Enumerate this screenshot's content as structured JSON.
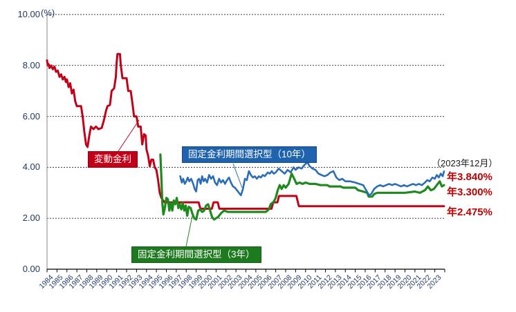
{
  "chart_data": {
    "type": "line",
    "title": "",
    "unit_label": "(%)",
    "xlabel": "",
    "ylabel": "",
    "ylim": [
      0,
      10
    ],
    "y_tick_labels": [
      "0.00",
      "2.00",
      "4.00",
      "6.00",
      "8.00",
      "10.00"
    ],
    "grid": "horizontal dashed gridlines at every 2.00",
    "legend_position": "inline callout boxes on plot",
    "x_years": [
      1984,
      1985,
      1986,
      1987,
      1988,
      1989,
      1990,
      1991,
      1992,
      1993,
      1994,
      1995,
      1996,
      1997,
      1998,
      1999,
      2000,
      2001,
      2002,
      2003,
      2004,
      2005,
      2006,
      2007,
      2008,
      2009,
      2010,
      2011,
      2012,
      2013,
      2014,
      2015,
      2016,
      2017,
      2018,
      2019,
      2020,
      2021,
      2022,
      2023
    ],
    "axis_text_color": "#1f3864",
    "series": [
      {
        "name": "変動金利",
        "color": "#c40018",
        "final_value": 2.475,
        "points": [
          [
            1984.0,
            8.2
          ],
          [
            1984.08,
            8.0
          ],
          [
            1984.17,
            8.05
          ],
          [
            1984.25,
            7.9
          ],
          [
            1984.42,
            8.0
          ],
          [
            1984.58,
            7.85
          ],
          [
            1984.75,
            7.95
          ],
          [
            1984.9,
            7.75
          ],
          [
            1985.08,
            7.8
          ],
          [
            1985.25,
            7.55
          ],
          [
            1985.42,
            7.65
          ],
          [
            1985.58,
            7.45
          ],
          [
            1985.75,
            7.55
          ],
          [
            1985.9,
            7.35
          ],
          [
            1986.0,
            7.45
          ],
          [
            1986.17,
            7.15
          ],
          [
            1986.33,
            7.3
          ],
          [
            1986.5,
            6.9
          ],
          [
            1986.67,
            7.05
          ],
          [
            1986.83,
            6.6
          ],
          [
            1987.0,
            6.4
          ],
          [
            1987.42,
            6.4
          ],
          [
            1987.58,
            6.0
          ],
          [
            1987.75,
            5.4
          ],
          [
            1987.92,
            4.9
          ],
          [
            1988.08,
            4.8
          ],
          [
            1988.25,
            5.25
          ],
          [
            1988.42,
            5.6
          ],
          [
            1988.67,
            5.5
          ],
          [
            1988.92,
            5.6
          ],
          [
            1989.17,
            5.5
          ],
          [
            1989.5,
            5.55
          ],
          [
            1989.75,
            5.9
          ],
          [
            1989.92,
            6.2
          ],
          [
            1990.08,
            6.4
          ],
          [
            1990.33,
            6.45
          ],
          [
            1990.5,
            7.0
          ],
          [
            1990.75,
            7.1
          ],
          [
            1990.92,
            7.55
          ],
          [
            1991.0,
            8.1
          ],
          [
            1991.08,
            8.45
          ],
          [
            1991.33,
            8.45
          ],
          [
            1991.42,
            8.0
          ],
          [
            1991.58,
            7.5
          ],
          [
            1992.0,
            7.5
          ],
          [
            1992.17,
            7.0
          ],
          [
            1992.42,
            7.0
          ],
          [
            1992.58,
            6.55
          ],
          [
            1992.75,
            6.0
          ],
          [
            1993.0,
            6.0
          ],
          [
            1993.17,
            5.6
          ],
          [
            1993.42,
            5.6
          ],
          [
            1993.58,
            4.9
          ],
          [
            1993.75,
            5.3
          ],
          [
            1993.92,
            5.25
          ],
          [
            1994.0,
            4.7
          ],
          [
            1994.17,
            4.45
          ],
          [
            1994.33,
            4.05
          ],
          [
            1994.5,
            4.3
          ],
          [
            1994.67,
            4.3
          ],
          [
            1994.83,
            4.0
          ],
          [
            1995.0,
            3.9
          ],
          [
            1995.17,
            3.5
          ],
          [
            1995.33,
            3.0
          ],
          [
            1995.5,
            2.8
          ],
          [
            1995.67,
            2.7
          ],
          [
            1995.83,
            2.625
          ],
          [
            1999.25,
            2.625
          ],
          [
            1999.42,
            2.375
          ],
          [
            2000.58,
            2.375
          ],
          [
            2000.75,
            2.625
          ],
          [
            2001.17,
            2.625
          ],
          [
            2001.33,
            2.375
          ],
          [
            2006.58,
            2.375
          ],
          [
            2006.75,
            2.625
          ],
          [
            2007.17,
            2.625
          ],
          [
            2007.33,
            2.875
          ],
          [
            2009.08,
            2.875
          ],
          [
            2009.33,
            2.475
          ],
          [
            2023.92,
            2.475
          ]
        ]
      },
      {
        "name": "固定金利期間選択型（3年）",
        "color": "#1e8a1e",
        "final_value": 3.3,
        "points": [
          [
            1995.4,
            4.5
          ],
          [
            1995.5,
            3.6
          ],
          [
            1995.6,
            2.6
          ],
          [
            1995.7,
            2.15
          ],
          [
            1995.85,
            2.4
          ],
          [
            1996.0,
            2.8
          ],
          [
            1996.15,
            2.75
          ],
          [
            1996.3,
            2.3
          ],
          [
            1996.45,
            2.6
          ],
          [
            1996.6,
            2.3
          ],
          [
            1996.75,
            2.7
          ],
          [
            1996.9,
            2.55
          ],
          [
            1997.05,
            2.8
          ],
          [
            1997.2,
            2.4
          ],
          [
            1997.35,
            2.55
          ],
          [
            1997.5,
            2.35
          ],
          [
            1997.65,
            2.6
          ],
          [
            1997.8,
            2.3
          ],
          [
            1997.95,
            2.5
          ],
          [
            1998.1,
            2.1
          ],
          [
            1998.25,
            2.45
          ],
          [
            1998.45,
            2.4
          ],
          [
            1998.6,
            2.2
          ],
          [
            1998.8,
            2.0
          ],
          [
            1999.0,
            1.95
          ],
          [
            1999.2,
            2.3
          ],
          [
            1999.4,
            2.35
          ],
          [
            1999.6,
            2.25
          ],
          [
            1999.8,
            2.3
          ],
          [
            2000.0,
            2.5
          ],
          [
            2000.2,
            2.55
          ],
          [
            2000.4,
            2.3
          ],
          [
            2000.6,
            2.05
          ],
          [
            2000.8,
            1.95
          ],
          [
            2001.0,
            2.0
          ],
          [
            2001.2,
            2.05
          ],
          [
            2001.5,
            2.2
          ],
          [
            2001.8,
            2.3
          ],
          [
            2002.2,
            2.25
          ],
          [
            2006.0,
            2.25
          ],
          [
            2006.3,
            2.35
          ],
          [
            2006.5,
            2.55
          ],
          [
            2006.8,
            2.65
          ],
          [
            2007.0,
            2.8
          ],
          [
            2007.2,
            3.1
          ],
          [
            2007.4,
            3.3
          ],
          [
            2007.6,
            3.15
          ],
          [
            2007.8,
            3.3
          ],
          [
            2008.0,
            3.2
          ],
          [
            2008.3,
            3.35
          ],
          [
            2008.6,
            3.75
          ],
          [
            2008.8,
            3.6
          ],
          [
            2009.1,
            3.35
          ],
          [
            2009.4,
            3.4
          ],
          [
            2009.7,
            3.35
          ],
          [
            2010.0,
            3.4
          ],
          [
            2010.4,
            3.35
          ],
          [
            2011.0,
            3.35
          ],
          [
            2011.5,
            3.3
          ],
          [
            2012.2,
            3.3
          ],
          [
            2012.4,
            3.25
          ],
          [
            2013.5,
            3.25
          ],
          [
            2013.8,
            3.2
          ],
          [
            2015.0,
            3.2
          ],
          [
            2015.3,
            3.1
          ],
          [
            2015.8,
            3.05
          ],
          [
            2016.2,
            3.0
          ],
          [
            2016.35,
            2.85
          ],
          [
            2016.7,
            2.85
          ],
          [
            2016.9,
            2.95
          ],
          [
            2017.2,
            3.0
          ],
          [
            2018.0,
            3.0
          ],
          [
            2019.0,
            3.0
          ],
          [
            2020.0,
            3.0
          ],
          [
            2021.0,
            3.05
          ],
          [
            2021.5,
            3.0
          ],
          [
            2022.0,
            3.1
          ],
          [
            2022.3,
            3.25
          ],
          [
            2022.6,
            3.1
          ],
          [
            2022.9,
            3.15
          ],
          [
            2023.2,
            3.3
          ],
          [
            2023.5,
            3.45
          ],
          [
            2023.7,
            3.25
          ],
          [
            2023.92,
            3.3
          ]
        ]
      },
      {
        "name": "固定金利期間選択型（10年）",
        "color": "#2b6cb8",
        "final_value": 3.84,
        "points": [
          [
            1997.4,
            3.65
          ],
          [
            1997.55,
            3.4
          ],
          [
            1997.7,
            3.55
          ],
          [
            1997.85,
            3.35
          ],
          [
            1998.0,
            3.45
          ],
          [
            1998.15,
            3.6
          ],
          [
            1998.3,
            3.45
          ],
          [
            1998.5,
            3.55
          ],
          [
            1998.7,
            3.35
          ],
          [
            1998.85,
            3.15
          ],
          [
            1999.0,
            3.05
          ],
          [
            1999.15,
            3.5
          ],
          [
            1999.3,
            3.55
          ],
          [
            1999.45,
            3.35
          ],
          [
            1999.6,
            3.65
          ],
          [
            1999.75,
            3.45
          ],
          [
            1999.9,
            3.55
          ],
          [
            2000.1,
            3.4
          ],
          [
            2000.3,
            3.7
          ],
          [
            2000.5,
            3.55
          ],
          [
            2000.7,
            3.65
          ],
          [
            2000.9,
            3.4
          ],
          [
            2001.1,
            3.3
          ],
          [
            2001.3,
            3.55
          ],
          [
            2001.5,
            3.4
          ],
          [
            2001.7,
            3.5
          ],
          [
            2001.9,
            3.35
          ],
          [
            2002.1,
            3.5
          ],
          [
            2002.3,
            3.6
          ],
          [
            2002.5,
            3.4
          ],
          [
            2002.7,
            3.25
          ],
          [
            2002.9,
            3.2
          ],
          [
            2003.1,
            3.1
          ],
          [
            2003.3,
            3.0
          ],
          [
            2003.5,
            2.9
          ],
          [
            2003.7,
            3.15
          ],
          [
            2003.9,
            3.55
          ],
          [
            2004.1,
            3.5
          ],
          [
            2004.3,
            3.85
          ],
          [
            2004.5,
            3.7
          ],
          [
            2004.7,
            3.6
          ],
          [
            2004.9,
            3.65
          ],
          [
            2005.1,
            3.55
          ],
          [
            2005.3,
            3.65
          ],
          [
            2005.5,
            3.6
          ],
          [
            2005.7,
            3.7
          ],
          [
            2005.9,
            3.65
          ],
          [
            2006.2,
            3.8
          ],
          [
            2006.4,
            3.75
          ],
          [
            2006.6,
            3.85
          ],
          [
            2006.8,
            3.75
          ],
          [
            2007.0,
            3.8
          ],
          [
            2007.3,
            3.95
          ],
          [
            2007.6,
            3.85
          ],
          [
            2007.9,
            3.75
          ],
          [
            2008.2,
            3.9
          ],
          [
            2008.5,
            3.8
          ],
          [
            2008.8,
            4.0
          ],
          [
            2009.0,
            3.9
          ],
          [
            2009.3,
            4.0
          ],
          [
            2009.6,
            3.95
          ],
          [
            2009.9,
            4.1
          ],
          [
            2010.2,
            4.2
          ],
          [
            2010.4,
            4.05
          ],
          [
            2010.7,
            3.95
          ],
          [
            2011.0,
            3.9
          ],
          [
            2011.3,
            3.75
          ],
          [
            2011.6,
            3.7
          ],
          [
            2011.9,
            3.65
          ],
          [
            2012.2,
            3.7
          ],
          [
            2012.5,
            3.8
          ],
          [
            2012.8,
            3.85
          ],
          [
            2013.1,
            3.6
          ],
          [
            2013.4,
            3.5
          ],
          [
            2013.7,
            3.55
          ],
          [
            2014.0,
            3.45
          ],
          [
            2014.5,
            3.45
          ],
          [
            2015.0,
            3.4
          ],
          [
            2015.4,
            3.35
          ],
          [
            2015.8,
            3.3
          ],
          [
            2016.1,
            3.1
          ],
          [
            2016.4,
            2.9
          ],
          [
            2016.6,
            2.95
          ],
          [
            2016.9,
            3.15
          ],
          [
            2017.2,
            3.25
          ],
          [
            2017.5,
            3.3
          ],
          [
            2017.8,
            3.25
          ],
          [
            2018.1,
            3.3
          ],
          [
            2018.4,
            3.35
          ],
          [
            2018.7,
            3.3
          ],
          [
            2019.0,
            3.35
          ],
          [
            2019.3,
            3.3
          ],
          [
            2019.6,
            3.25
          ],
          [
            2019.9,
            3.3
          ],
          [
            2020.2,
            3.25
          ],
          [
            2020.5,
            3.3
          ],
          [
            2020.8,
            3.35
          ],
          [
            2021.1,
            3.3
          ],
          [
            2021.4,
            3.35
          ],
          [
            2021.7,
            3.3
          ],
          [
            2022.0,
            3.4
          ],
          [
            2022.25,
            3.5
          ],
          [
            2022.5,
            3.45
          ],
          [
            2022.75,
            3.6
          ],
          [
            2023.0,
            3.55
          ],
          [
            2023.2,
            3.7
          ],
          [
            2023.4,
            3.6
          ],
          [
            2023.6,
            3.75
          ],
          [
            2023.8,
            3.65
          ],
          [
            2023.92,
            3.84
          ]
        ]
      }
    ],
    "callouts": [
      {
        "label": "変動金利",
        "bg": "#c40018",
        "text_color": "#ffffff"
      },
      {
        "label": "固定金利期間選択型（10年）",
        "bg": "#1f63af",
        "text_color": "#ffffff"
      },
      {
        "label": "固定金利期間選択型（3年）",
        "bg": "#1e7a1e",
        "text_color": "#ffffff"
      }
    ],
    "right_annotations": {
      "asof": "（2023年12月）",
      "color": "#c00000",
      "values": [
        {
          "label": "年3.840%",
          "series": "固定金利期間選択型（10年）"
        },
        {
          "label": "年3.300%",
          "series": "固定金利期間選択型（3年）"
        },
        {
          "label": "年2.475%",
          "series": "変動金利"
        }
      ]
    }
  }
}
